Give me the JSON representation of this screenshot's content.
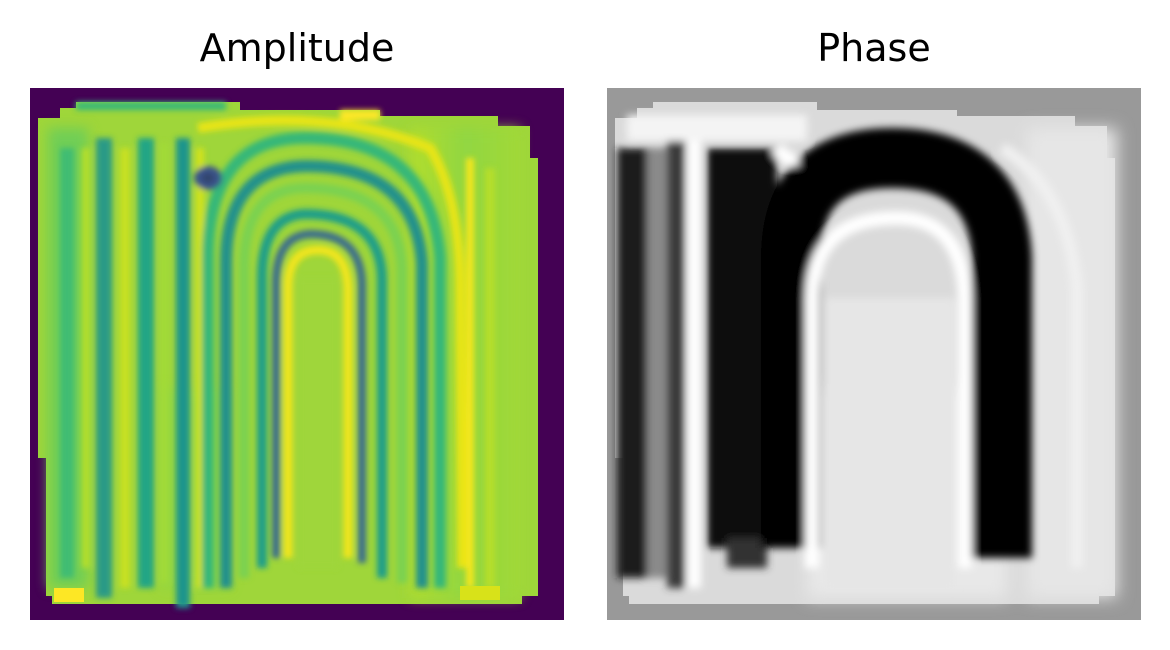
{
  "panels": [
    {
      "title": "Amplitude",
      "colormap": "viridis",
      "colors": {
        "background": "#440154",
        "base": "#9fd63a",
        "bright": "#f0e62a",
        "mid": "#5ec962",
        "band": "#21918c",
        "dark_band": "#2c6f8e",
        "deep": "#3b528b"
      }
    },
    {
      "title": "Phase",
      "colormap": "gray",
      "colors": {
        "background": "#999999",
        "base": "#dadada",
        "light": "#f4f4f4",
        "white": "#ffffff",
        "mid": "#8a8a8a",
        "dark": "#1a1a1a",
        "black": "#050505"
      }
    }
  ]
}
